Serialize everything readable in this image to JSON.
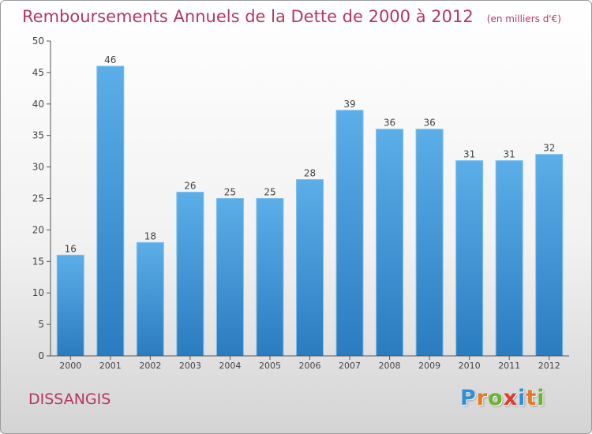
{
  "commune": "DISSANGIS",
  "logo": {
    "letters": [
      "P",
      "r",
      "o",
      "x",
      "i",
      "t",
      "i"
    ],
    "colors": [
      "#2e8fd8",
      "#e87722",
      "#6ab42d",
      "#e23a2f",
      "#2e8fd8",
      "#e87722",
      "#6ab42d"
    ]
  },
  "colors": {
    "bar": "#3d95d6",
    "title": "#b5375f"
  },
  "chart_data": {
    "type": "bar",
    "title": "Remboursements Annuels de la Dette de 2000 à 2012",
    "subtitle": "(en milliers d'€)",
    "categories": [
      "2000",
      "2001",
      "2002",
      "2003",
      "2004",
      "2005",
      "2006",
      "2007",
      "2008",
      "2009",
      "2010",
      "2011",
      "2012"
    ],
    "values": [
      16,
      46,
      18,
      26,
      25,
      25,
      28,
      39,
      36,
      36,
      31,
      31,
      32
    ],
    "ylim": [
      0,
      50
    ],
    "yticks": [
      0,
      5,
      10,
      15,
      20,
      25,
      30,
      35,
      40,
      45,
      50
    ],
    "grid": false,
    "data_labels": true
  }
}
